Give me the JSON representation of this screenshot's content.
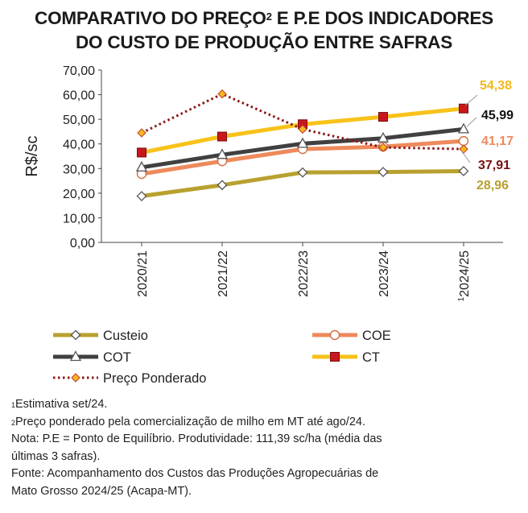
{
  "title": {
    "line1_prefix": "COMPARATIVO DO PREÇO",
    "line1_sup": "2",
    "line1_suffix": " E P.E DOS INDICADORES",
    "line2": "DO CUSTO DE PRODUÇÃO ENTRE SAFRAS"
  },
  "chart_data": {
    "type": "line",
    "ylabel": "R$/sc",
    "ylim": [
      0,
      70
    ],
    "yticks": [
      "0,00",
      "10,00",
      "20,00",
      "30,00",
      "40,00",
      "50,00",
      "60,00",
      "70,00"
    ],
    "categories": [
      "2020/21",
      "2021/22",
      "2022/23",
      "2023/24",
      "2024/25"
    ],
    "category_sup": [
      "",
      "",
      "",
      "",
      "1"
    ],
    "series": [
      {
        "name": "Custeio",
        "color": "#b8a12f",
        "marker": "diamond",
        "dashed": false,
        "values": [
          18.8,
          23.3,
          28.4,
          28.6,
          28.96
        ],
        "last_label": "28,96"
      },
      {
        "name": "COE",
        "color": "#ee8a5c",
        "marker": "circle",
        "dashed": false,
        "values": [
          27.8,
          33.0,
          37.9,
          38.9,
          41.17
        ],
        "last_label": "41,17"
      },
      {
        "name": "COT",
        "color": "#404040",
        "marker": "triangle",
        "dashed": false,
        "values": [
          30.5,
          35.6,
          40.1,
          42.3,
          45.99
        ],
        "last_label": "45,99"
      },
      {
        "name": "CT",
        "color": "#f8c21a",
        "marker": "square",
        "dashed": false,
        "values": [
          36.5,
          43.0,
          48.0,
          51.0,
          54.38
        ],
        "last_label": "54,38"
      },
      {
        "name": "Preço Ponderado",
        "color": "#8b1515",
        "marker": "smalldiamond",
        "dashed": true,
        "values": [
          44.5,
          60.3,
          46.0,
          38.6,
          37.91
        ],
        "last_label": "37,91"
      }
    ],
    "grid": false,
    "legend_position": "bottom"
  },
  "notes": {
    "n1_sup": "1",
    "n1": "Estimativa set/24.",
    "n2_sup": "2",
    "n2": "Preço ponderado pela comercialização de milho em MT até ago/24.",
    "n3a": "Nota: P.E = Ponto de Equilíbrio. Produtividade: 111,39 sc/ha (média das",
    "n3b": "últimas 3 safras).",
    "n4a": "Fonte: Acompanhamento dos Custos das Produções Agropecuárias de",
    "n4b": "Mato Grosso 2024/25 (Acapa-MT)."
  }
}
